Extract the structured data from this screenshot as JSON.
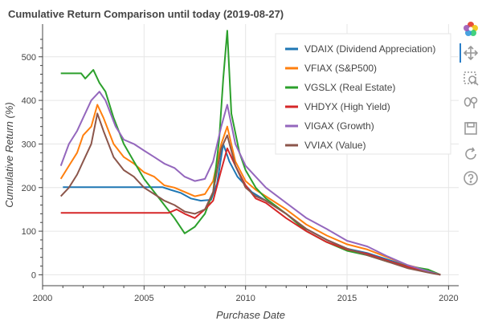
{
  "chart_data": {
    "type": "line",
    "title": "Cumulative Return Comparison until today (2019-08-27)",
    "xlabel": "Purchase Date",
    "ylabel": "Cumulative Return (%)",
    "xlim": [
      2000.0,
      2020.5
    ],
    "ylim": [
      -25,
      575
    ],
    "x_ticks": [
      2000,
      2005,
      2010,
      2015,
      2020
    ],
    "y_ticks": [
      0,
      100,
      200,
      300,
      400,
      500
    ],
    "grid": true,
    "legend_position": "top-right",
    "series": [
      {
        "name": "VDAIX (Dividend Appreciation)",
        "color": "#1f77b4",
        "x": [
          2001.0,
          2005.9,
          2006.3,
          2006.8,
          2007.3,
          2007.8,
          2008.3,
          2008.6,
          2008.9,
          2009.2,
          2009.6,
          2010.3,
          2011.0,
          2012.0,
          2013.0,
          2014.0,
          2015.0,
          2016.0,
          2017.0,
          2018.0,
          2019.0,
          2019.6
        ],
        "y": [
          201,
          201,
          195,
          188,
          175,
          170,
          172,
          210,
          300,
          260,
          225,
          190,
          170,
          140,
          105,
          80,
          60,
          50,
          35,
          20,
          8,
          0
        ]
      },
      {
        "name": "VFIAX (S&P500)",
        "color": "#ff7f0e",
        "x": [
          2000.9,
          2001.3,
          2001.7,
          2002.0,
          2002.4,
          2002.7,
          2003.0,
          2003.5,
          2004.0,
          2004.5,
          2005.0,
          2005.5,
          2006.0,
          2006.5,
          2007.0,
          2007.5,
          2008.0,
          2008.4,
          2008.8,
          2009.1,
          2009.5,
          2010.0,
          2010.5,
          2011.0,
          2012.0,
          2013.0,
          2014.0,
          2015.0,
          2016.0,
          2017.0,
          2018.0,
          2019.0,
          2019.6
        ],
        "y": [
          220,
          250,
          280,
          320,
          340,
          390,
          360,
          300,
          270,
          255,
          235,
          225,
          205,
          200,
          190,
          180,
          185,
          215,
          300,
          340,
          260,
          215,
          195,
          180,
          150,
          115,
          90,
          70,
          58,
          40,
          22,
          10,
          0
        ]
      },
      {
        "name": "VGSLX (Real Estate)",
        "color": "#2ca02c",
        "x": [
          2000.9,
          2001.9,
          2002.1,
          2002.5,
          2002.8,
          2003.1,
          2003.5,
          2004.0,
          2004.5,
          2005.0,
          2005.5,
          2006.0,
          2006.5,
          2007.0,
          2007.5,
          2008.0,
          2008.4,
          2008.7,
          2008.9,
          2009.1,
          2009.3,
          2009.7,
          2010.0,
          2010.5,
          2011.0,
          2012.0,
          2013.0,
          2014.0,
          2015.0,
          2016.0,
          2017.0,
          2018.0,
          2019.0,
          2019.6
        ],
        "y": [
          462,
          462,
          450,
          470,
          440,
          420,
          360,
          300,
          260,
          220,
          190,
          160,
          130,
          95,
          110,
          140,
          190,
          310,
          450,
          560,
          370,
          280,
          240,
          200,
          175,
          140,
          100,
          75,
          55,
          45,
          30,
          20,
          12,
          0
        ]
      },
      {
        "name": "VHDYX (High Yield)",
        "color": "#d62728",
        "x": [
          2000.9,
          2006.2,
          2006.6,
          2007.0,
          2007.5,
          2008.0,
          2008.4,
          2008.8,
          2009.1,
          2009.5,
          2010.0,
          2010.5,
          2011.0,
          2012.0,
          2013.0,
          2014.0,
          2015.0,
          2016.0,
          2017.0,
          2018.0,
          2019.0,
          2019.6
        ],
        "y": [
          142,
          142,
          150,
          140,
          130,
          150,
          170,
          240,
          290,
          250,
          205,
          175,
          165,
          130,
          100,
          75,
          58,
          48,
          32,
          18,
          7,
          0
        ]
      },
      {
        "name": "VIGAX (Growth)",
        "color": "#9467bd",
        "x": [
          2000.9,
          2001.3,
          2001.7,
          2002.0,
          2002.4,
          2002.8,
          2003.1,
          2003.6,
          2004.0,
          2004.5,
          2005.0,
          2005.5,
          2006.0,
          2006.5,
          2007.0,
          2007.5,
          2008.0,
          2008.4,
          2008.8,
          2009.1,
          2009.5,
          2010.0,
          2010.5,
          2011.0,
          2012.0,
          2013.0,
          2014.0,
          2015.0,
          2016.0,
          2017.0,
          2018.0,
          2019.0,
          2019.6
        ],
        "y": [
          250,
          300,
          330,
          360,
          400,
          420,
          400,
          340,
          310,
          300,
          285,
          270,
          255,
          245,
          225,
          215,
          220,
          260,
          340,
          390,
          300,
          250,
          225,
          200,
          165,
          130,
          105,
          78,
          65,
          42,
          22,
          8,
          0
        ]
      },
      {
        "name": "VVIAX (Value)",
        "color": "#8c564b",
        "x": [
          2000.9,
          2001.3,
          2001.7,
          2002.0,
          2002.4,
          2002.7,
          2003.0,
          2003.5,
          2004.0,
          2004.5,
          2005.0,
          2005.5,
          2006.0,
          2006.5,
          2007.0,
          2007.5,
          2008.0,
          2008.4,
          2008.8,
          2009.1,
          2009.5,
          2010.0,
          2010.5,
          2011.0,
          2012.0,
          2013.0,
          2014.0,
          2015.0,
          2016.0,
          2017.0,
          2018.0,
          2019.0,
          2019.6
        ],
        "y": [
          180,
          200,
          230,
          260,
          300,
          370,
          330,
          270,
          240,
          225,
          200,
          185,
          170,
          160,
          145,
          140,
          150,
          190,
          290,
          320,
          250,
          200,
          180,
          170,
          140,
          105,
          80,
          60,
          45,
          30,
          15,
          5,
          0
        ]
      }
    ]
  },
  "toolbar": {
    "tools": [
      {
        "name": "bokeh-logo-icon"
      },
      {
        "name": "pan-icon"
      },
      {
        "name": "box-zoom-icon"
      },
      {
        "name": "wheel-zoom-icon"
      },
      {
        "name": "save-icon"
      },
      {
        "name": "reset-icon"
      },
      {
        "name": "help-icon"
      }
    ]
  }
}
